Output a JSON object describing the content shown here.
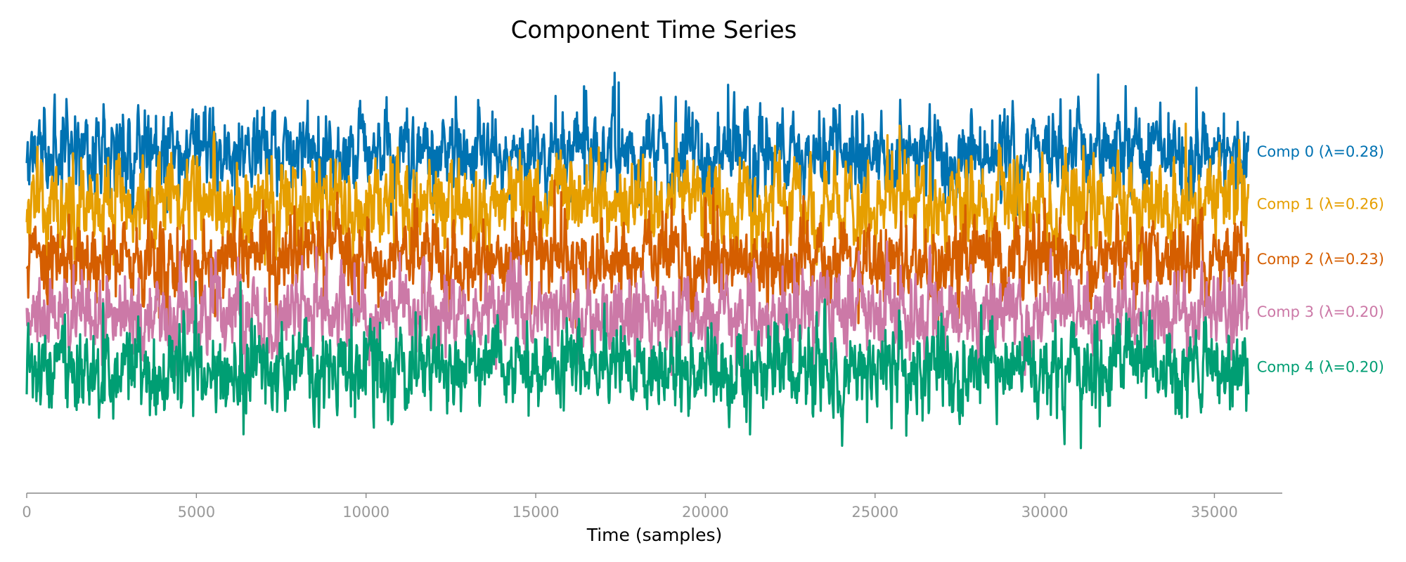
{
  "chart_data": {
    "type": "line",
    "title": "Component Time Series",
    "xlabel": "Time (samples)",
    "ylabel": "",
    "xlim": [
      0,
      37000
    ],
    "x_end": 36000,
    "xticks": [
      0,
      5000,
      10000,
      15000,
      20000,
      25000,
      30000,
      35000
    ],
    "xtick_labels": [
      "0",
      "5000",
      "10000",
      "15000",
      "20000",
      "25000",
      "30000",
      "35000"
    ],
    "y_axis_visible": false,
    "grid": false,
    "legend": "inline labels at right end of each trace",
    "series": [
      {
        "name": "Comp 0 (λ=0.28)",
        "color": "#0072b2",
        "offset": 4,
        "center": 3.15,
        "spread": 0.55,
        "min": 1.95,
        "max": 4.7
      },
      {
        "name": "Comp 1 (λ=0.26)",
        "color": "#e69f00",
        "offset": 3,
        "center": 2.15,
        "spread": 0.6,
        "min": 1.0,
        "max": 3.7
      },
      {
        "name": "Comp 2 (λ=0.23)",
        "color": "#d55e00",
        "offset": 2,
        "center": 1.1,
        "spread": 0.55,
        "min": -0.2,
        "max": 2.6
      },
      {
        "name": "Comp 3 (λ=0.20)",
        "color": "#cc79a7",
        "offset": 1,
        "center": 0.1,
        "spread": 0.55,
        "min": -1.1,
        "max": 1.55
      },
      {
        "name": "Comp 4 (λ=0.20)",
        "color": "#009e73",
        "offset": 0,
        "center": -0.95,
        "spread": 0.55,
        "min": -2.95,
        "max": 0.75
      }
    ]
  }
}
